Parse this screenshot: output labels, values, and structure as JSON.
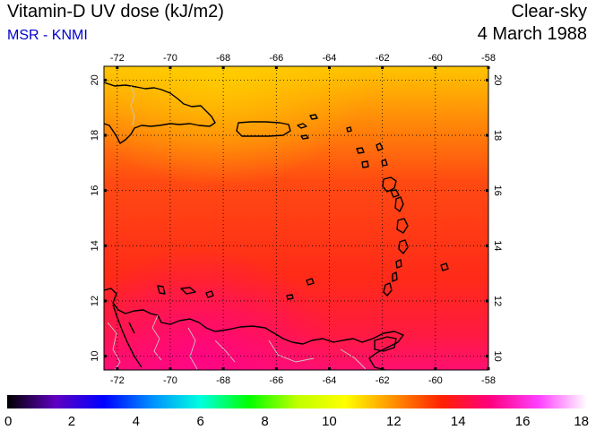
{
  "header": {
    "title": "Vitamin-D UV dose (kJ/m2)",
    "subtitle": "MSR - KNMI",
    "sky": "Clear-sky",
    "date": "4 March 1988"
  },
  "map": {
    "lon_range": [
      -72.5,
      -58
    ],
    "lat_range": [
      9.5,
      20.5
    ],
    "lon_ticks": [
      "-72",
      "-70",
      "-68",
      "-66",
      "-64",
      "-62",
      "-60",
      "-58"
    ],
    "lat_ticks": [
      "20",
      "18",
      "16",
      "14",
      "12",
      "10"
    ],
    "grid": true,
    "colors": {
      "top": "#ffb000",
      "mid": "#ff3a10",
      "bottom": "#ff1060",
      "coast": "#000000",
      "border": "#b0b0b0"
    }
  },
  "colorbar": {
    "min": 0,
    "max": 18,
    "labels": [
      "0",
      "2",
      "4",
      "6",
      "8",
      "10",
      "12",
      "14",
      "16",
      "18"
    ],
    "stops": [
      "#000000",
      "#6000c0",
      "#0000ff",
      "#0090ff",
      "#00ffe0",
      "#00ff00",
      "#c0ff00",
      "#ffff00",
      "#ff9000",
      "#ff2000",
      "#ff0080",
      "#ff40ff",
      "#ffffff"
    ]
  }
}
